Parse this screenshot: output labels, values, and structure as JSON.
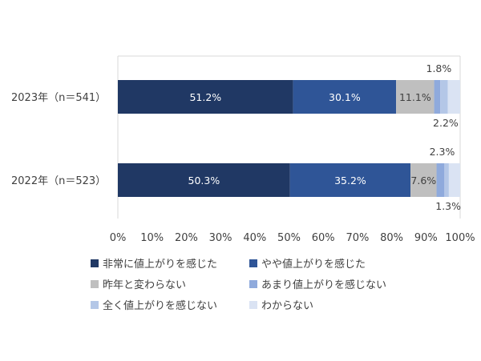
{
  "chart_data": {
    "type": "bar",
    "orientation": "horizontal",
    "stacked": true,
    "categories": [
      "2023年（n＝541）",
      "2022年（n＝523）"
    ],
    "series": [
      {
        "name": "非常に値上がりを感じた",
        "values": [
          51.2,
          50.3
        ],
        "color": "#203864",
        "labels": [
          "51.2%",
          "50.3%"
        ]
      },
      {
        "name": "やや値上がりを感じた",
        "values": [
          30.1,
          35.2
        ],
        "color": "#2F5597",
        "labels": [
          "30.1%",
          "35.2%"
        ]
      },
      {
        "name": "昨年と変わらない",
        "values": [
          11.1,
          7.6
        ],
        "color": "#BFBFBF",
        "labels": [
          "11.1%",
          "7.6%"
        ]
      },
      {
        "name": "あまり値上がりを感じない",
        "values": [
          1.8,
          2.3
        ],
        "color": "#8FAADC",
        "labels": [
          "1.8%",
          "2.3%"
        ]
      },
      {
        "name": "全く値上がりを感じない",
        "values": [
          2.2,
          1.3
        ],
        "color": "#B4C7E7",
        "labels": [
          "2.2%",
          "1.3%"
        ]
      },
      {
        "name": "わからない",
        "values": [
          3.6,
          3.3
        ],
        "color": "#DAE3F3",
        "labels": [
          "",
          ""
        ]
      }
    ],
    "x_ticks": [
      "0%",
      "10%",
      "20%",
      "30%",
      "40%",
      "50%",
      "60%",
      "70%",
      "80%",
      "90%",
      "100%"
    ],
    "xlim": [
      0,
      100
    ],
    "grid": false,
    "legend": "bottom"
  }
}
